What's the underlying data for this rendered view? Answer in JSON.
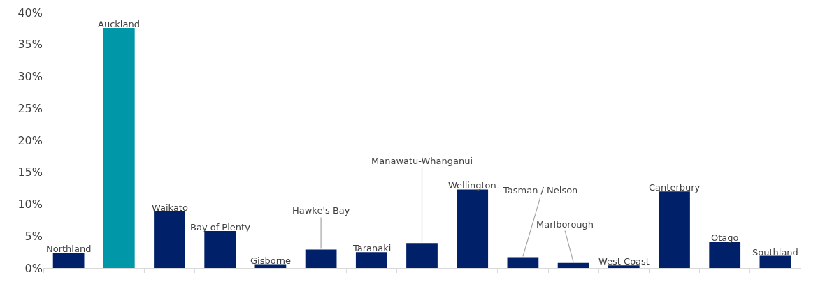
{
  "chart_data": {
    "type": "bar",
    "categories": [
      "Northland",
      "Auckland",
      "Waikato",
      "Bay of Plenty",
      "Gisborne",
      "Hawke's Bay",
      "Taranaki",
      "Manawatū-Whanganui",
      "Wellington",
      "Tasman / Nelson",
      "Marlborough",
      "West Coast",
      "Canterbury",
      "Otago",
      "Southland"
    ],
    "values": [
      2.4,
      37.6,
      8.9,
      5.8,
      0.6,
      2.9,
      2.5,
      3.9,
      12.3,
      1.7,
      0.8,
      0.4,
      12.0,
      4.1,
      1.9
    ],
    "colors": [
      "#002169",
      "#0097a9",
      "#002169",
      "#002169",
      "#002169",
      "#002169",
      "#002169",
      "#002169",
      "#002169",
      "#002169",
      "#002169",
      "#002169",
      "#002169",
      "#002169",
      "#002169"
    ],
    "ylim": [
      0,
      40
    ],
    "yticks": [
      {
        "value": 0,
        "label": "0%"
      },
      {
        "value": 5,
        "label": "5%"
      },
      {
        "value": 10,
        "label": "10%"
      },
      {
        "value": 15,
        "label": "15%"
      },
      {
        "value": 20,
        "label": "20%"
      },
      {
        "value": 25,
        "label": "25%"
      },
      {
        "value": 30,
        "label": "30%"
      },
      {
        "value": 35,
        "label": "35%"
      },
      {
        "value": 40,
        "label": "40%"
      }
    ],
    "grid": false
  }
}
